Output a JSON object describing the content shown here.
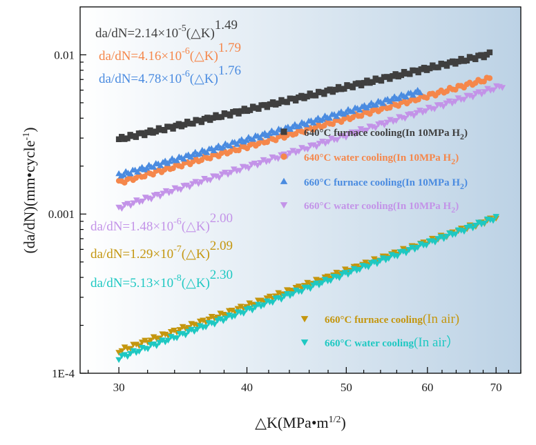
{
  "chart_data": {
    "type": "scatter",
    "x_scale": "log",
    "y_scale": "log",
    "xlim": [
      27.5,
      74
    ],
    "ylim": [
      0.0001,
      0.02
    ],
    "x_ticks": [
      30,
      40,
      50,
      60,
      70
    ],
    "y_ticks": [
      0.0001,
      0.001,
      0.01
    ],
    "y_tick_labels": [
      "1E-4",
      "0.001",
      "0.01"
    ],
    "xlabel": {
      "main": "△K(MPa•m",
      "sup": "1/2",
      "tail": ")"
    },
    "ylabel": {
      "main": "(da/dN)(mm•cycle",
      "sup": "-1",
      "tail": ")"
    },
    "background": {
      "left": "#ffffff",
      "right": "#bcd2e5"
    },
    "series": [
      {
        "name": {
          "main": "640°C furnace cooling(In 10MPa H",
          "sub": "2",
          "tail": ")"
        },
        "marker": "square",
        "color": "#3f3f3f",
        "x_range": [
          30,
          69
        ],
        "C": 2.14e-05,
        "m": 1.49,
        "y_start": 0.00295,
        "y_end": 0.0101,
        "equation": {
          "pre": "da/dN=2.14×10",
          "exp": "-5",
          "mid": "(△K)",
          "pow": "1.49"
        }
      },
      {
        "name": {
          "main": "640°C water cooling(In 10MPa H",
          "sub": "2",
          "tail": ")"
        },
        "marker": "circle",
        "color": "#f5874b",
        "x_range": [
          30,
          69
        ],
        "C": 4.16e-06,
        "m": 1.79,
        "y_start": 0.00158,
        "y_end": 0.0071,
        "equation": {
          "pre": "da/dN=4.16×10",
          "exp": "-6",
          "mid": "(△K)",
          "pow": "1.79"
        }
      },
      {
        "name": {
          "main": "660°C furnace cooling(In 10MPa H",
          "sub": "2",
          "tail": ")"
        },
        "marker": "triangle-up",
        "color": "#4a8be0",
        "x_range": [
          30,
          59
        ],
        "C": 4.78e-06,
        "m": 1.76,
        "y_start": 0.00175,
        "y_end": 0.0059,
        "equation": {
          "pre": "da/dN=4.78×10",
          "exp": "-6",
          "mid": "(△K)",
          "pow": "1.76"
        }
      },
      {
        "name": {
          "main": "660°C water cooling(In 10MPa H",
          "sub": "2",
          "tail": ")"
        },
        "marker": "triangle-down",
        "color": "#c393e8",
        "x_range": [
          30,
          71
        ],
        "C": 1.48e-06,
        "m": 2.0,
        "y_start": 0.0011,
        "y_end": 0.0064,
        "equation": {
          "pre": "da/dN=1.48×10",
          "exp": "-6",
          "mid": "(△K)",
          "pow": "2.00"
        }
      },
      {
        "name": {
          "main": "660°C furnace cooling",
          "paren": "(In air)"
        },
        "marker": "triangle-down",
        "color": "#c4960e",
        "x_range": [
          30,
          70
        ],
        "C": 1.29e-07,
        "m": 2.09,
        "y_start": 0.000138,
        "y_end": 0.00095,
        "equation": {
          "pre": "da/dN=1.29×10",
          "exp": "-7",
          "mid": "(△K)",
          "pow": "2.09"
        }
      },
      {
        "name": {
          "main": "660°C water cooling",
          "paren": "(In air）"
        },
        "marker": "triangle-down",
        "color": "#1ec8c2",
        "x_range": [
          30,
          70
        ],
        "C": 5.13e-08,
        "m": 2.3,
        "y_start": 0.000125,
        "y_end": 0.00095,
        "equation": {
          "pre": "da/dN=5.13×10",
          "exp": "-8",
          "mid": "(△K)",
          "pow": "2.30"
        }
      }
    ]
  }
}
